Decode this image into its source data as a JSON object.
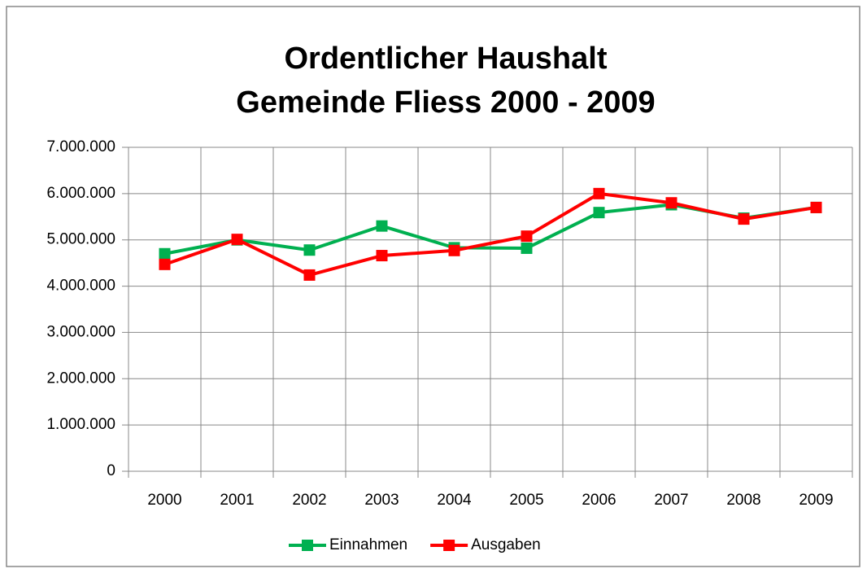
{
  "chart_data": {
    "type": "line",
    "title": [
      "Ordentlicher Haushalt",
      "Gemeinde Fliess 2000 - 2009"
    ],
    "categories": [
      "2000",
      "2001",
      "2002",
      "2003",
      "2004",
      "2005",
      "2006",
      "2007",
      "2008",
      "2009"
    ],
    "series": [
      {
        "name": "Einnahmen",
        "color": "#00b050",
        "values": [
          4700000,
          5000000,
          4780000,
          5300000,
          4830000,
          4820000,
          5590000,
          5760000,
          5470000,
          5700000
        ]
      },
      {
        "name": "Ausgaben",
        "color": "#ff0000",
        "values": [
          4470000,
          5010000,
          4240000,
          4660000,
          4770000,
          5080000,
          6000000,
          5800000,
          5450000,
          5700000
        ]
      }
    ],
    "ylim": [
      0,
      7000000
    ],
    "yticks": [
      0,
      {
        "value": 1000000,
        "label": "1.000.000"
      },
      {
        "value": 2000000,
        "label": "2.000.000"
      },
      {
        "value": 3000000,
        "label": "3.000.000"
      },
      {
        "value": 4000000,
        "label": "4.000.000"
      },
      {
        "value": 5000000,
        "label": "5.000.000"
      },
      {
        "value": 6000000,
        "label": "6.000.000"
      },
      {
        "value": 7000000,
        "label": "7.000.000"
      }
    ],
    "grid": true,
    "legend": "bottom"
  }
}
